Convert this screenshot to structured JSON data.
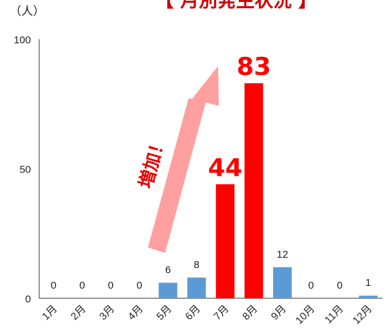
{
  "colors": {
    "normal_bar": "#5b9bd5",
    "highlight_bar": "#ff0000",
    "arrow": "#ffa0a0",
    "annotation": "#e60000",
    "title": "#d00000"
  },
  "chart_data": {
    "type": "bar",
    "title": "【 月別発生状況 】",
    "unit_label": "（人）",
    "categories": [
      "1月",
      "2月",
      "3月",
      "4月",
      "5月",
      "6月",
      "7月",
      "8月",
      "9月",
      "10月",
      "11月",
      "12月"
    ],
    "values": [
      0,
      0,
      0,
      0,
      6,
      8,
      44,
      83,
      12,
      0,
      0,
      1
    ],
    "highlight": [
      false,
      false,
      false,
      false,
      false,
      false,
      true,
      true,
      false,
      false,
      false,
      false
    ],
    "ylim": [
      0,
      100
    ],
    "yticks": [
      0,
      50,
      100
    ],
    "grid": false,
    "annotation": {
      "text": "増加！",
      "icon": "up-arrow"
    }
  }
}
